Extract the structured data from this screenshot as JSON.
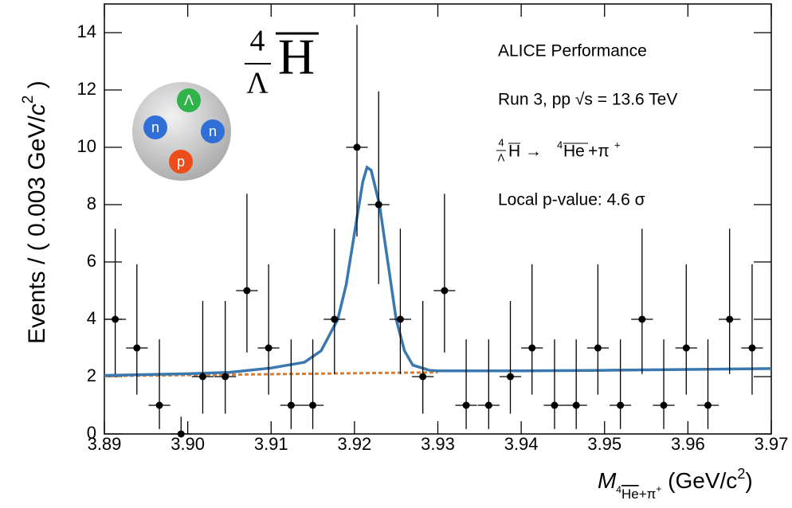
{
  "chart_data": {
    "type": "scatter",
    "xlim": [
      3.89,
      3.97
    ],
    "ylim": [
      0,
      15
    ],
    "xticks": [
      3.89,
      {
        "value": 3.9,
        "label": "3.90"
      },
      3.91,
      3.92,
      3.93,
      3.94,
      3.95,
      3.96,
      3.97
    ],
    "yticks": [
      0,
      2,
      4,
      6,
      8,
      10,
      12,
      14
    ],
    "y_label": [
      "Events / ( 0.003 GeV/",
      "c",
      "2",
      " )"
    ],
    "x_label": [
      "M",
      "4",
      "He",
      "+π",
      "+",
      " (GeV/c",
      "2",
      ")"
    ],
    "annotations": [
      "ALICE Performance",
      "Run 3, pp √s = 13.6 TeV",
      "Local p-value: 4.6 σ"
    ],
    "reaction": [
      "4",
      "Λ",
      "H",
      " → ",
      "4",
      "He",
      "+π",
      "+"
    ],
    "nucleus_label": [
      "4",
      "Λ",
      "H"
    ],
    "particles": [
      "Λ",
      "n",
      "n",
      "p"
    ],
    "series": [
      {
        "type": "errorbar",
        "color": "#000000",
        "x": [
          3.8913,
          3.8939,
          3.8966,
          3.8992,
          3.9018,
          3.9045,
          3.9071,
          3.9097,
          3.9124,
          3.915,
          3.9176,
          3.9203,
          3.9229,
          3.9255,
          3.9282,
          3.9308,
          3.9334,
          3.9361,
          3.9387,
          3.9413,
          3.944,
          3.9466,
          3.9492,
          3.9519,
          3.9545,
          3.9571,
          3.9598,
          3.9624,
          3.965,
          3.9677
        ],
        "values": [
          4,
          3,
          1,
          0,
          2,
          2,
          5,
          3,
          1,
          1,
          4,
          10,
          8,
          4,
          2,
          5,
          1,
          1,
          2,
          3,
          1,
          1,
          3,
          1,
          4,
          1,
          3,
          1,
          4,
          3
        ],
        "error_low": [
          1.91,
          1.63,
          0.83,
          0,
          1.29,
          1.29,
          2.16,
          1.63,
          0.83,
          0.83,
          1.91,
          3.11,
          2.77,
          1.91,
          1.29,
          2.16,
          0.83,
          0.83,
          1.29,
          1.63,
          0.83,
          0.83,
          1.63,
          0.83,
          1.91,
          0.83,
          1.63,
          0.83,
          1.91,
          1.63
        ],
        "error_high": [
          3.16,
          2.92,
          2.3,
          0.6,
          2.64,
          2.64,
          3.38,
          2.92,
          2.3,
          2.3,
          3.16,
          4.27,
          3.95,
          3.16,
          2.64,
          3.38,
          2.3,
          2.3,
          2.64,
          2.92,
          2.3,
          2.3,
          2.92,
          2.3,
          3.16,
          2.3,
          2.92,
          2.3,
          3.16,
          2.92
        ],
        "xerr": 0.0013
      },
      {
        "type": "line",
        "color": "#e07b28",
        "style": "dashed",
        "x": [
          3.89,
          3.93
        ],
        "values": [
          2.02,
          2.15
        ]
      },
      {
        "type": "line",
        "color": "#3a78b0",
        "style": "solid",
        "x": [
          3.89,
          3.9,
          3.905,
          3.91,
          3.914,
          3.916,
          3.918,
          3.919,
          3.92,
          3.921,
          3.9215,
          3.922,
          3.923,
          3.924,
          3.925,
          3.926,
          3.927,
          3.929,
          3.93,
          3.94,
          3.95,
          3.96,
          3.97
        ],
        "values": [
          2.04,
          2.1,
          2.15,
          2.3,
          2.5,
          2.9,
          4.0,
          5.2,
          7.0,
          8.8,
          9.3,
          9.2,
          8.0,
          6.0,
          4.0,
          2.9,
          2.4,
          2.22,
          2.2,
          2.2,
          2.22,
          2.25,
          2.28
        ]
      }
    ]
  }
}
